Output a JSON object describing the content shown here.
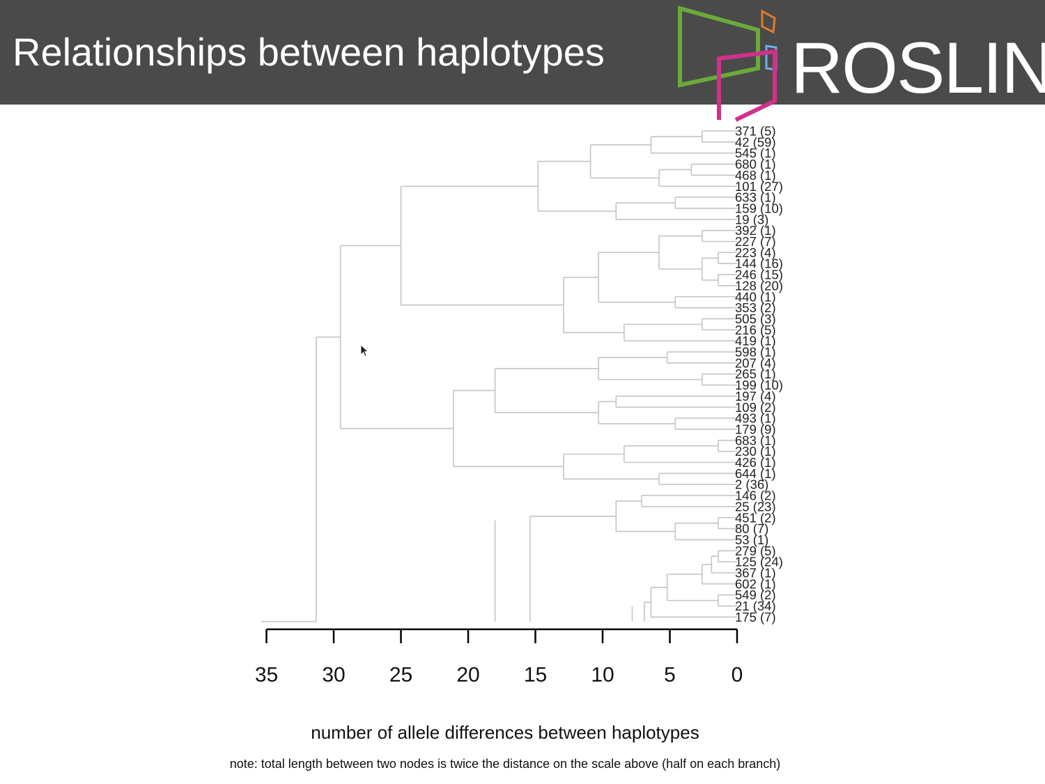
{
  "slide": {
    "title": "Relationships between haplotypes",
    "logo_text": "ROSLIN",
    "colors": {
      "header_bg": "#4a4a4a",
      "logo_green": "#6aaa3a",
      "logo_orange": "#e07b2a",
      "logo_blue": "#6ab4e0",
      "logo_magenta": "#d0308a",
      "tree_line": "#c4c4c4"
    }
  },
  "chart_data": {
    "type": "dendrogram",
    "orientation": "horizontal, root on left, leaves on right",
    "xlabel": "number of allele differences between haplotypes",
    "note": "note: total length between two nodes is twice the distance on the scale above (half on each branch)",
    "xlim": [
      35,
      0
    ],
    "xticks": [
      35,
      30,
      25,
      20,
      15,
      10,
      5,
      0
    ],
    "leaves": [
      "371 (5)",
      "42 (59)",
      "545 (1)",
      "680 (1)",
      "468 (1)",
      "101 (27)",
      "633 (1)",
      "159 (10)",
      "19 (3)",
      "392 (1)",
      "227 (7)",
      "223 (4)",
      "144 (16)",
      "246 (15)",
      "128 (20)",
      "440 (1)",
      "353 (2)",
      "505 (3)",
      "216 (5)",
      "419 (1)",
      "598 (1)",
      "207 (4)",
      "265 (1)",
      "199 (10)",
      "197 (4)",
      "109 (2)",
      "493 (1)",
      "179 (9)",
      "683 (1)",
      "230 (1)",
      "426 (1)",
      "644 (1)",
      "2 (36)",
      "146 (2)",
      "25 (23)",
      "451 (2)",
      "80 (7)",
      "53 (1)",
      "279 (5)",
      "125 (24)",
      "367 (1)",
      "602 (1)",
      "549 (2)",
      "21 (34)",
      "175 (7)"
    ],
    "merges": [
      {
        "a": "L0",
        "b": "L1",
        "h": 2.6
      },
      {
        "a": "M0",
        "b": "L2",
        "h": 6.4
      },
      {
        "a": "L3",
        "b": "L4",
        "h": 3.4
      },
      {
        "a": "M2",
        "b": "L5",
        "h": 5.8
      },
      {
        "a": "M1",
        "b": "M3",
        "h": 10.9
      },
      {
        "a": "L6",
        "b": "L7",
        "h": 4.6
      },
      {
        "a": "M5",
        "b": "L8",
        "h": 9.0
      },
      {
        "a": "M4",
        "b": "M6",
        "h": 14.8
      },
      {
        "a": "L9",
        "b": "L10",
        "h": 2.6
      },
      {
        "a": "L11",
        "b": "L12",
        "h": 1.4
      },
      {
        "a": "L13",
        "b": "L14",
        "h": 1.4
      },
      {
        "a": "M9",
        "b": "M10",
        "h": 2.6
      },
      {
        "a": "M8",
        "b": "M11",
        "h": 5.8
      },
      {
        "a": "L15",
        "b": "L16",
        "h": 4.6
      },
      {
        "a": "M12",
        "b": "M13",
        "h": 10.3
      },
      {
        "a": "L17",
        "b": "L18",
        "h": 2.6
      },
      {
        "a": "M15",
        "b": "L19",
        "h": 8.4
      },
      {
        "a": "M14",
        "b": "M16",
        "h": 12.9
      },
      {
        "a": "M7",
        "b": "M17",
        "h": 25.0
      },
      {
        "a": "L20",
        "b": "L21",
        "h": 5.2
      },
      {
        "a": "L22",
        "b": "L23",
        "h": 2.6
      },
      {
        "a": "M19",
        "b": "M20",
        "h": 10.3
      },
      {
        "a": "L24",
        "b": "L25",
        "h": 9.0
      },
      {
        "a": "L26",
        "b": "L27",
        "h": 4.6
      },
      {
        "a": "M22",
        "b": "M23",
        "h": 10.3
      },
      {
        "a": "M21",
        "b": "M24",
        "h": 18.0
      },
      {
        "a": "L28",
        "b": "L29",
        "h": 1.4
      },
      {
        "a": "M26",
        "b": "L30",
        "h": 8.4
      },
      {
        "a": "L31",
        "b": "L32",
        "h": 5.8
      },
      {
        "a": "M27",
        "b": "M28",
        "h": 12.9
      },
      {
        "a": "M25",
        "b": "M29",
        "h": 21.1
      },
      {
        "a": "M18",
        "b": "M30",
        "h": 29.5
      },
      {
        "a": "L33",
        "b": "L34",
        "h": 7.1
      },
      {
        "a": "L35",
        "b": "L36",
        "h": 1.4
      },
      {
        "a": "M33",
        "b": "L37",
        "h": 4.6
      },
      {
        "a": "M32",
        "b": "M34",
        "h": 9.0
      },
      {
        "a": "L38",
        "b": "L39",
        "h": 1.4
      },
      {
        "a": "M36",
        "b": "L40",
        "h": 1.9
      },
      {
        "a": "M37",
        "b": "L41",
        "h": 2.6
      },
      {
        "a": "L42",
        "b": "L43",
        "h": 1.4
      },
      {
        "a": "M38",
        "b": "M39",
        "h": 5.2
      },
      {
        "a": "M40",
        "b": "L44",
        "h": 6.4
      }
    ],
    "open_branches": [
      {
        "from": "M41",
        "h": 6.9,
        "to": 7.8
      },
      {
        "from": "M35",
        "h": 15.4,
        "to": 18.0
      },
      {
        "h": 31.3,
        "to": 35.4,
        "note": "root branch extending left"
      }
    ],
    "grid": false,
    "legend": "none"
  },
  "axis": {
    "tick_labels": [
      "35",
      "30",
      "25",
      "20",
      "15",
      "10",
      "5",
      "0"
    ]
  }
}
